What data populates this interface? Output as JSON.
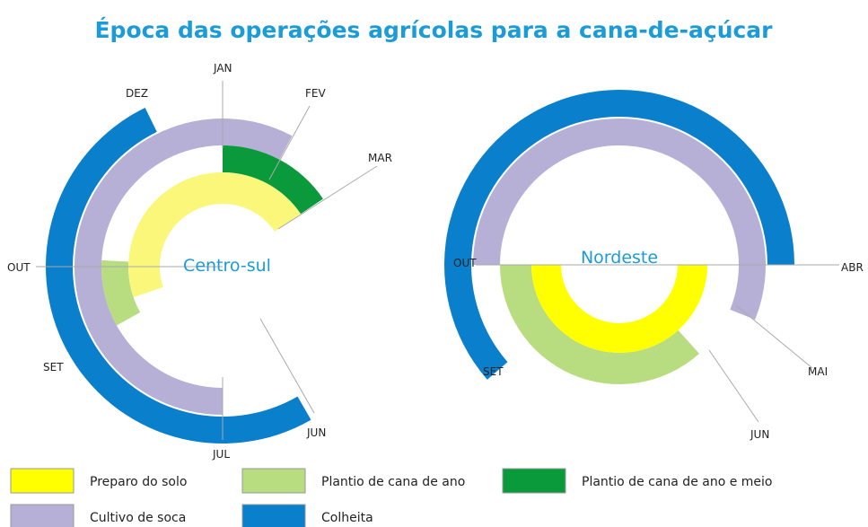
{
  "title": "Época das operações agrícolas para a cana-de-açúcar",
  "diagrams": [
    {
      "label": "Centro-sul",
      "months": [
        "JAN",
        "FEV",
        "MAR",
        "JUN",
        "JUL",
        "SET",
        "OUT",
        "DEZ"
      ]
    },
    {
      "label": "Nordeste",
      "months": [
        "ABR",
        "MAI",
        "JUN",
        "SET",
        "OUT"
      ]
    }
  ],
  "legend": [
    "Preparo do solo",
    "Plantio de cana de ano",
    "Plantio de cana de ano e meio",
    "Cultivo de soca",
    "Colheita"
  ]
}
